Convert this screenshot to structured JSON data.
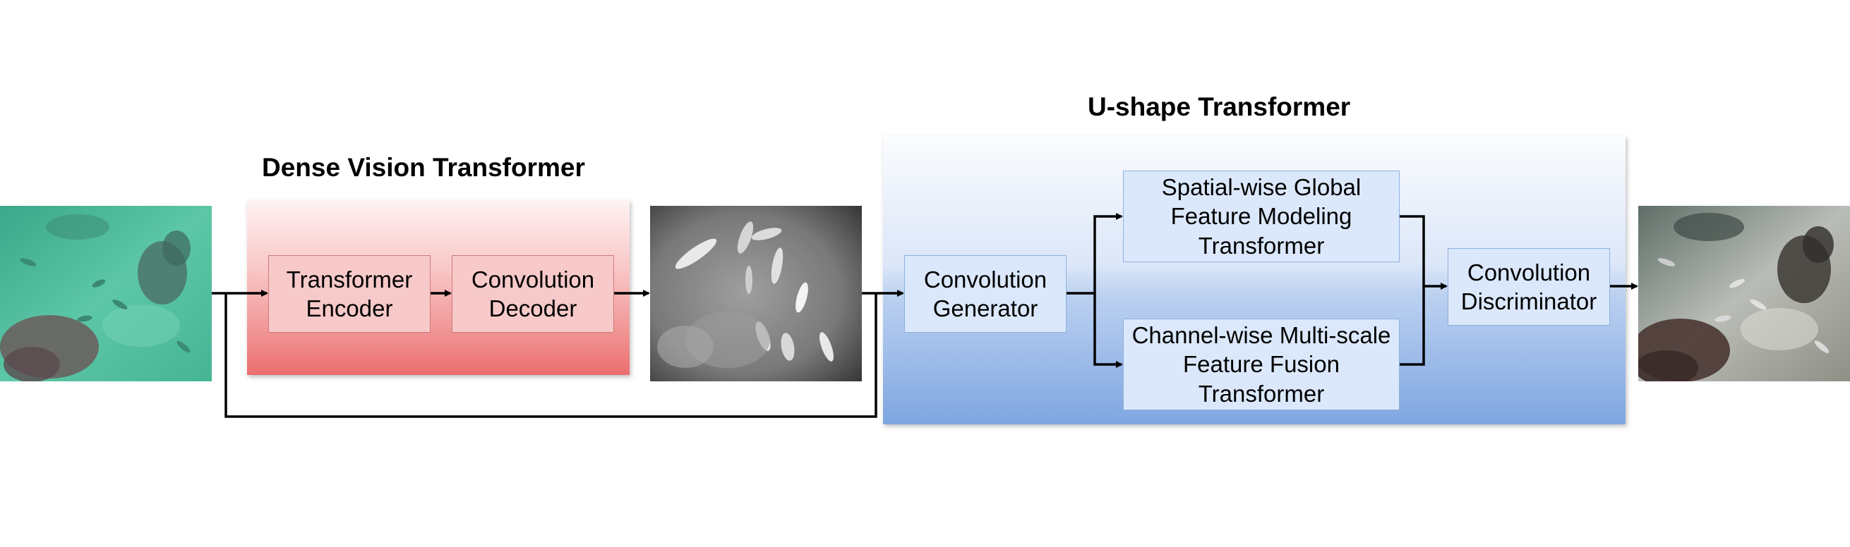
{
  "dense_vision_transformer": {
    "title": "Dense Vision Transformer",
    "transformer_encoder": "Transformer\nEncoder",
    "convolution_decoder": "Convolution\nDecoder"
  },
  "u_shape_transformer": {
    "title": "U-shape Transformer",
    "convolution_generator": "Convolution\nGenerator",
    "spatial_wise": "Spatial-wise Global\nFeature Modeling\nTransformer",
    "channel_wise": "Channel-wise Multi-scale\nFeature Fusion\nTransformer",
    "convolution_discriminator": "Convolution\nDiscriminator"
  },
  "colors": {
    "dense_panel_top": "#fde8e8",
    "dense_panel_bottom": "#ec6e6e",
    "ushape_panel_top": "#f6f9fe",
    "ushape_panel_bottom": "#7fa6e0",
    "arrow": "#000000"
  }
}
